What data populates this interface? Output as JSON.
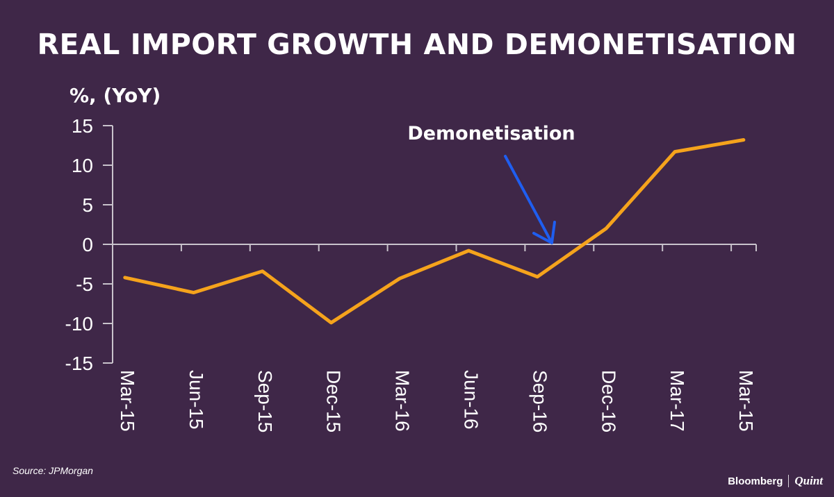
{
  "title": "REAL IMPORT GROWTH AND DEMONETISATION",
  "source": "Source: JPMorgan",
  "brand": {
    "name1": "Bloomberg",
    "name2": "Quint"
  },
  "colors": {
    "background": "#3f2748",
    "line": "#f5a31c",
    "arrow": "#1f5ef0",
    "axis": "#c9c3cc"
  },
  "chart_data": {
    "type": "line",
    "ylabel": "%, (YoY)",
    "ylim": [
      -15,
      15
    ],
    "yticks": [
      15,
      10,
      5,
      0,
      -5,
      -10,
      -15
    ],
    "categories": [
      "Mar-15",
      "Jun-15",
      "Sep-15",
      "Dec-15",
      "Mar-16",
      "Jun-16",
      "Sep-16",
      "Dec-16",
      "Mar-17",
      "Mar-15"
    ],
    "values": [
      -4.2,
      -6.1,
      -3.4,
      -9.9,
      -4.3,
      -0.8,
      -4.1,
      2.0,
      11.7,
      13.2
    ],
    "grid": false,
    "annotations": [
      {
        "text": "Demonetisation",
        "arrow_x_index": 6.35,
        "arrow_y": 0
      }
    ]
  }
}
